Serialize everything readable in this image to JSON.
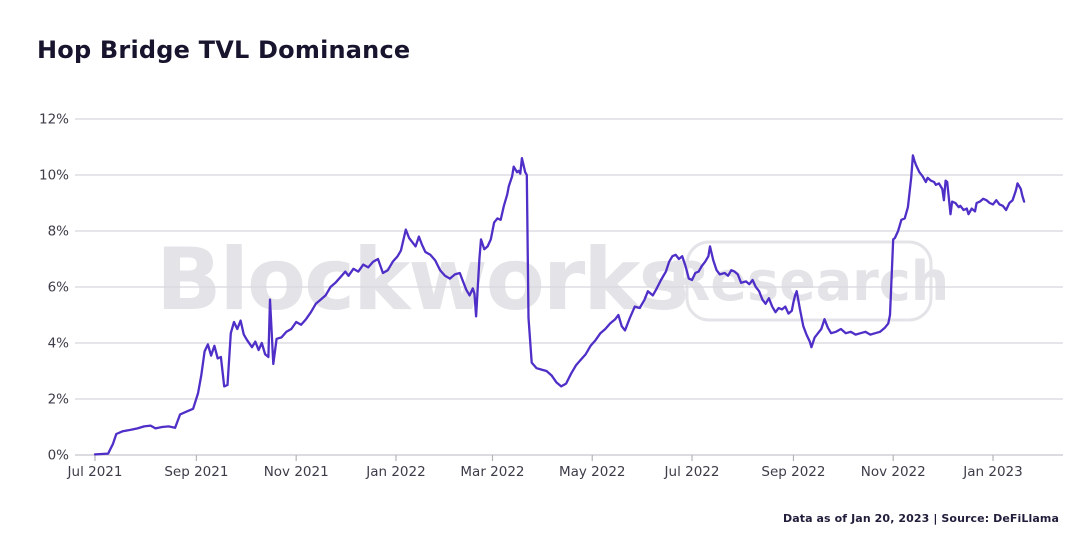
{
  "header": {
    "title": "Hop Bridge TVL Dominance"
  },
  "watermark": {
    "brand": "Blockworks",
    "badge": "Research"
  },
  "footer": {
    "text": "Data as of Jan 20, 2023 | Source: DeFiLlama"
  },
  "colors": {
    "line": "#4F2FC7",
    "grid": "#d8d8dd",
    "axis_line": "#c7c7cd",
    "tick_mark": "#b4b4bb",
    "axis_text": "#3d3c49",
    "title_text": "#18142e",
    "watermark": "#e4e4e8",
    "background": "#ffffff"
  },
  "chart_data": {
    "type": "line",
    "title": "Hop Bridge TVL Dominance",
    "xlabel": "",
    "ylabel": "",
    "legend": "none",
    "grid": true,
    "y_axis": {
      "min": 0,
      "max": 12,
      "tick_step": 2,
      "tick_labels": [
        "0%",
        "2%",
        "4%",
        "6%",
        "8%",
        "10%",
        "12%"
      ]
    },
    "x_axis": {
      "type": "date",
      "start": "2021-07-01",
      "end": "2023-01-20",
      "ticks": [
        {
          "label": "Jul 2021",
          "date": "2021-07-01"
        },
        {
          "label": "Sep 2021",
          "date": "2021-09-01"
        },
        {
          "label": "Nov 2021",
          "date": "2021-11-01"
        },
        {
          "label": "Jan 2022",
          "date": "2022-01-01"
        },
        {
          "label": "Mar 2022",
          "date": "2022-03-01"
        },
        {
          "label": "May 2022",
          "date": "2022-05-01"
        },
        {
          "label": "Jul 2022",
          "date": "2022-07-01"
        },
        {
          "label": "Sep 2022",
          "date": "2022-09-01"
        },
        {
          "label": "Nov 2022",
          "date": "2022-11-01"
        },
        {
          "label": "Jan 2023",
          "date": "2023-01-01"
        }
      ]
    },
    "series": [
      {
        "name": "Hop Bridge TVL Dominance (%)",
        "color": "#4F2FC7",
        "points": [
          [
            "2021-07-01",
            0.02
          ],
          [
            "2021-07-09",
            0.05
          ],
          [
            "2021-07-12",
            0.4
          ],
          [
            "2021-07-14",
            0.75
          ],
          [
            "2021-07-18",
            0.85
          ],
          [
            "2021-07-23",
            0.9
          ],
          [
            "2021-07-27",
            0.95
          ],
          [
            "2021-07-31",
            1.02
          ],
          [
            "2021-08-04",
            1.05
          ],
          [
            "2021-08-07",
            0.95
          ],
          [
            "2021-08-11",
            1.0
          ],
          [
            "2021-08-15",
            1.02
          ],
          [
            "2021-08-19",
            0.97
          ],
          [
            "2021-08-22",
            1.45
          ],
          [
            "2021-08-26",
            1.55
          ],
          [
            "2021-08-30",
            1.65
          ],
          [
            "2021-09-02",
            2.2
          ],
          [
            "2021-09-04",
            2.85
          ],
          [
            "2021-09-06",
            3.7
          ],
          [
            "2021-09-08",
            3.95
          ],
          [
            "2021-09-10",
            3.55
          ],
          [
            "2021-09-12",
            3.9
          ],
          [
            "2021-09-14",
            3.45
          ],
          [
            "2021-09-16",
            3.5
          ],
          [
            "2021-09-18",
            2.45
          ],
          [
            "2021-09-20",
            2.5
          ],
          [
            "2021-09-22",
            4.35
          ],
          [
            "2021-09-24",
            4.75
          ],
          [
            "2021-09-26",
            4.5
          ],
          [
            "2021-09-28",
            4.8
          ],
          [
            "2021-09-30",
            4.3
          ],
          [
            "2021-10-02",
            4.1
          ],
          [
            "2021-10-05",
            3.85
          ],
          [
            "2021-10-07",
            4.05
          ],
          [
            "2021-10-09",
            3.75
          ],
          [
            "2021-10-11",
            4.0
          ],
          [
            "2021-10-13",
            3.6
          ],
          [
            "2021-10-15",
            3.5
          ],
          [
            "2021-10-16",
            5.55
          ],
          [
            "2021-10-18",
            3.25
          ],
          [
            "2021-10-20",
            4.15
          ],
          [
            "2021-10-23",
            4.2
          ],
          [
            "2021-10-26",
            4.4
          ],
          [
            "2021-10-29",
            4.5
          ],
          [
            "2021-11-01",
            4.75
          ],
          [
            "2021-11-04",
            4.65
          ],
          [
            "2021-11-07",
            4.85
          ],
          [
            "2021-11-10",
            5.1
          ],
          [
            "2021-11-13",
            5.4
          ],
          [
            "2021-11-16",
            5.55
          ],
          [
            "2021-11-19",
            5.7
          ],
          [
            "2021-11-22",
            6.0
          ],
          [
            "2021-11-25",
            6.15
          ],
          [
            "2021-11-28",
            6.35
          ],
          [
            "2021-12-01",
            6.55
          ],
          [
            "2021-12-03",
            6.4
          ],
          [
            "2021-12-06",
            6.65
          ],
          [
            "2021-12-09",
            6.55
          ],
          [
            "2021-12-12",
            6.8
          ],
          [
            "2021-12-15",
            6.7
          ],
          [
            "2021-12-18",
            6.9
          ],
          [
            "2021-12-21",
            7.0
          ],
          [
            "2021-12-24",
            6.5
          ],
          [
            "2021-12-27",
            6.6
          ],
          [
            "2021-12-30",
            6.9
          ],
          [
            "2022-01-02",
            7.1
          ],
          [
            "2022-01-04",
            7.3
          ],
          [
            "2022-01-07",
            8.05
          ],
          [
            "2022-01-09",
            7.75
          ],
          [
            "2022-01-11",
            7.6
          ],
          [
            "2022-01-13",
            7.45
          ],
          [
            "2022-01-15",
            7.8
          ],
          [
            "2022-01-17",
            7.5
          ],
          [
            "2022-01-19",
            7.25
          ],
          [
            "2022-01-22",
            7.15
          ],
          [
            "2022-01-25",
            6.95
          ],
          [
            "2022-01-28",
            6.6
          ],
          [
            "2022-01-31",
            6.4
          ],
          [
            "2022-02-03",
            6.3
          ],
          [
            "2022-02-06",
            6.45
          ],
          [
            "2022-02-09",
            6.5
          ],
          [
            "2022-02-11",
            6.2
          ],
          [
            "2022-02-13",
            5.9
          ],
          [
            "2022-02-15",
            5.7
          ],
          [
            "2022-02-17",
            5.95
          ],
          [
            "2022-02-18",
            5.75
          ],
          [
            "2022-02-19",
            4.95
          ],
          [
            "2022-02-21",
            7.0
          ],
          [
            "2022-02-22",
            7.7
          ],
          [
            "2022-02-24",
            7.35
          ],
          [
            "2022-02-26",
            7.45
          ],
          [
            "2022-02-28",
            7.7
          ],
          [
            "2022-03-02",
            8.3
          ],
          [
            "2022-03-04",
            8.45
          ],
          [
            "2022-03-06",
            8.4
          ],
          [
            "2022-03-08",
            8.9
          ],
          [
            "2022-03-10",
            9.3
          ],
          [
            "2022-03-11",
            9.6
          ],
          [
            "2022-03-13",
            9.95
          ],
          [
            "2022-03-14",
            10.3
          ],
          [
            "2022-03-16",
            10.1
          ],
          [
            "2022-03-17",
            10.15
          ],
          [
            "2022-03-18",
            10.05
          ],
          [
            "2022-03-19",
            10.6
          ],
          [
            "2022-03-21",
            10.1
          ],
          [
            "2022-03-22",
            10.0
          ],
          [
            "2022-03-23",
            4.9
          ],
          [
            "2022-03-25",
            3.3
          ],
          [
            "2022-03-28",
            3.1
          ],
          [
            "2022-03-31",
            3.05
          ],
          [
            "2022-04-03",
            3.0
          ],
          [
            "2022-04-06",
            2.85
          ],
          [
            "2022-04-09",
            2.6
          ],
          [
            "2022-04-12",
            2.45
          ],
          [
            "2022-04-15",
            2.55
          ],
          [
            "2022-04-18",
            2.9
          ],
          [
            "2022-04-21",
            3.2
          ],
          [
            "2022-04-24",
            3.4
          ],
          [
            "2022-04-27",
            3.6
          ],
          [
            "2022-04-30",
            3.9
          ],
          [
            "2022-05-03",
            4.1
          ],
          [
            "2022-05-06",
            4.35
          ],
          [
            "2022-05-09",
            4.5
          ],
          [
            "2022-05-12",
            4.7
          ],
          [
            "2022-05-15",
            4.85
          ],
          [
            "2022-05-17",
            5.0
          ],
          [
            "2022-05-19",
            4.6
          ],
          [
            "2022-05-21",
            4.45
          ],
          [
            "2022-05-24",
            4.9
          ],
          [
            "2022-05-27",
            5.3
          ],
          [
            "2022-05-30",
            5.25
          ],
          [
            "2022-06-02",
            5.55
          ],
          [
            "2022-06-04",
            5.85
          ],
          [
            "2022-06-07",
            5.7
          ],
          [
            "2022-06-09",
            5.9
          ],
          [
            "2022-06-12",
            6.25
          ],
          [
            "2022-06-15",
            6.55
          ],
          [
            "2022-06-17",
            6.9
          ],
          [
            "2022-06-19",
            7.1
          ],
          [
            "2022-06-21",
            7.15
          ],
          [
            "2022-06-23",
            7.0
          ],
          [
            "2022-06-25",
            7.1
          ],
          [
            "2022-06-27",
            6.75
          ],
          [
            "2022-06-29",
            6.3
          ],
          [
            "2022-07-01",
            6.25
          ],
          [
            "2022-07-03",
            6.5
          ],
          [
            "2022-07-05",
            6.55
          ],
          [
            "2022-07-07",
            6.75
          ],
          [
            "2022-07-09",
            6.9
          ],
          [
            "2022-07-11",
            7.1
          ],
          [
            "2022-07-12",
            7.45
          ],
          [
            "2022-07-14",
            6.95
          ],
          [
            "2022-07-16",
            6.6
          ],
          [
            "2022-07-18",
            6.45
          ],
          [
            "2022-07-21",
            6.5
          ],
          [
            "2022-07-23",
            6.4
          ],
          [
            "2022-07-25",
            6.6
          ],
          [
            "2022-07-27",
            6.55
          ],
          [
            "2022-07-29",
            6.45
          ],
          [
            "2022-07-31",
            6.15
          ],
          [
            "2022-08-03",
            6.2
          ],
          [
            "2022-08-05",
            6.1
          ],
          [
            "2022-08-07",
            6.25
          ],
          [
            "2022-08-09",
            6.0
          ],
          [
            "2022-08-11",
            5.85
          ],
          [
            "2022-08-13",
            5.55
          ],
          [
            "2022-08-15",
            5.4
          ],
          [
            "2022-08-17",
            5.6
          ],
          [
            "2022-08-19",
            5.3
          ],
          [
            "2022-08-21",
            5.1
          ],
          [
            "2022-08-23",
            5.25
          ],
          [
            "2022-08-25",
            5.2
          ],
          [
            "2022-08-27",
            5.3
          ],
          [
            "2022-08-29",
            5.05
          ],
          [
            "2022-08-31",
            5.15
          ],
          [
            "2022-09-01",
            5.45
          ],
          [
            "2022-09-02",
            5.7
          ],
          [
            "2022-09-03",
            5.85
          ],
          [
            "2022-09-05",
            5.2
          ],
          [
            "2022-09-07",
            4.6
          ],
          [
            "2022-09-09",
            4.3
          ],
          [
            "2022-09-11",
            4.05
          ],
          [
            "2022-09-12",
            3.85
          ],
          [
            "2022-09-14",
            4.2
          ],
          [
            "2022-09-16",
            4.35
          ],
          [
            "2022-09-18",
            4.5
          ],
          [
            "2022-09-20",
            4.85
          ],
          [
            "2022-09-22",
            4.55
          ],
          [
            "2022-09-24",
            4.35
          ],
          [
            "2022-09-27",
            4.4
          ],
          [
            "2022-09-30",
            4.5
          ],
          [
            "2022-10-03",
            4.35
          ],
          [
            "2022-10-06",
            4.4
          ],
          [
            "2022-10-09",
            4.3
          ],
          [
            "2022-10-12",
            4.35
          ],
          [
            "2022-10-15",
            4.4
          ],
          [
            "2022-10-18",
            4.3
          ],
          [
            "2022-10-21",
            4.35
          ],
          [
            "2022-10-24",
            4.4
          ],
          [
            "2022-10-27",
            4.55
          ],
          [
            "2022-10-29",
            4.7
          ],
          [
            "2022-10-30",
            5.0
          ],
          [
            "2022-11-01",
            7.7
          ],
          [
            "2022-11-02",
            7.75
          ],
          [
            "2022-11-04",
            8.0
          ],
          [
            "2022-11-06",
            8.4
          ],
          [
            "2022-11-08",
            8.45
          ],
          [
            "2022-11-10",
            8.85
          ],
          [
            "2022-11-12",
            9.9
          ],
          [
            "2022-11-13",
            10.7
          ],
          [
            "2022-11-14",
            10.5
          ],
          [
            "2022-11-15",
            10.35
          ],
          [
            "2022-11-17",
            10.1
          ],
          [
            "2022-11-19",
            9.95
          ],
          [
            "2022-11-21",
            9.75
          ],
          [
            "2022-11-22",
            9.9
          ],
          [
            "2022-11-24",
            9.8
          ],
          [
            "2022-11-26",
            9.75
          ],
          [
            "2022-11-27",
            9.65
          ],
          [
            "2022-11-29",
            9.7
          ],
          [
            "2022-12-01",
            9.5
          ],
          [
            "2022-12-02",
            9.1
          ],
          [
            "2022-12-03",
            9.8
          ],
          [
            "2022-12-04",
            9.75
          ],
          [
            "2022-12-06",
            8.6
          ],
          [
            "2022-12-07",
            9.05
          ],
          [
            "2022-12-09",
            9.0
          ],
          [
            "2022-12-11",
            8.85
          ],
          [
            "2022-12-12",
            8.9
          ],
          [
            "2022-12-14",
            8.75
          ],
          [
            "2022-12-16",
            8.8
          ],
          [
            "2022-12-17",
            8.6
          ],
          [
            "2022-12-19",
            8.8
          ],
          [
            "2022-12-21",
            8.7
          ],
          [
            "2022-12-22",
            9.0
          ],
          [
            "2022-12-24",
            9.05
          ],
          [
            "2022-12-26",
            9.15
          ],
          [
            "2022-12-28",
            9.1
          ],
          [
            "2022-12-30",
            9.0
          ],
          [
            "2023-01-01",
            8.95
          ],
          [
            "2023-01-03",
            9.1
          ],
          [
            "2023-01-05",
            8.95
          ],
          [
            "2023-01-07",
            8.9
          ],
          [
            "2023-01-09",
            8.75
          ],
          [
            "2023-01-11",
            9.0
          ],
          [
            "2023-01-13",
            9.1
          ],
          [
            "2023-01-15",
            9.45
          ],
          [
            "2023-01-16",
            9.7
          ],
          [
            "2023-01-17",
            9.6
          ],
          [
            "2023-01-18",
            9.5
          ],
          [
            "2023-01-19",
            9.25
          ],
          [
            "2023-01-20",
            9.05
          ]
        ]
      }
    ]
  }
}
